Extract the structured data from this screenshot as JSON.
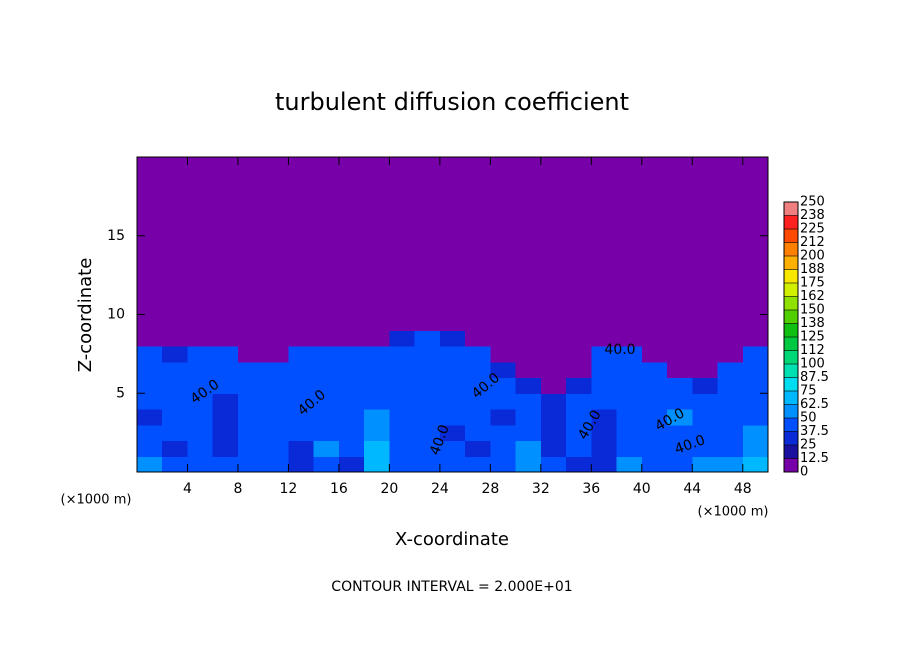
{
  "chart_data": {
    "type": "contour",
    "title": "turbulent diffusion coefficient",
    "xlabel": "X-coordinate",
    "ylabel": "Z-coordinate",
    "x_unit_left": "(×1000 m)",
    "x_unit_right": "(×1000 m)",
    "footer": "CONTOUR INTERVAL = 2.000E+01",
    "contour_labels": [
      "40.0",
      "40.0",
      "40.0",
      "40.0",
      "40.0",
      "40.0",
      "40.0",
      "40.0"
    ],
    "xlim": [
      0,
      50
    ],
    "ylim": [
      0,
      20
    ],
    "xticks": [
      4,
      8,
      12,
      16,
      20,
      24,
      28,
      32,
      36,
      40,
      44,
      48
    ],
    "yticks": [
      5,
      10,
      15
    ],
    "colorbar_ticks": [
      0,
      {
        "value": 12.5,
        "label": "12.5"
      },
      25,
      {
        "value": 37.5,
        "label": "37.5"
      },
      50,
      {
        "value": 62.5,
        "label": "62.5"
      },
      75,
      {
        "value": 87.5,
        "label": "87.5"
      },
      100,
      {
        "value": 112.5,
        "label": "112"
      },
      125,
      {
        "value": 137.5,
        "label": "138"
      },
      150,
      {
        "value": 162.5,
        "label": "162"
      },
      175,
      {
        "value": 187.5,
        "label": "188"
      },
      200,
      {
        "value": 212.5,
        "label": "212"
      },
      225,
      {
        "value": 237.5,
        "label": "238"
      },
      250
    ],
    "colors": [
      "#7700a8",
      "#1a10a0",
      "#0a2ad8",
      "#0050ff",
      "#0090ff",
      "#00b8ff",
      "#00dcf0",
      "#00e0b0",
      "#00d878",
      "#00c840",
      "#10c010",
      "#50d000",
      "#90e000",
      "#d0f000",
      "#f8e800",
      "#ffb000",
      "#ff8000",
      "#ff4800",
      "#ff2020",
      "#f08080"
    ],
    "z": [
      [
        55,
        40,
        45,
        38,
        40,
        42,
        30,
        45,
        35,
        70,
        40,
        48,
        42,
        38,
        45,
        62,
        40,
        35,
        30,
        50,
        45,
        42,
        60,
        58,
        65
      ],
      [
        45,
        35,
        42,
        30,
        38,
        45,
        35,
        50,
        38,
        65,
        42,
        45,
        40,
        30,
        44,
        50,
        35,
        40,
        25,
        48,
        40,
        38,
        45,
        40,
        55
      ],
      [
        40,
        38,
        45,
        28,
        42,
        40,
        38,
        45,
        40,
        55,
        38,
        42,
        35,
        38,
        40,
        45,
        30,
        42,
        28,
        45,
        42,
        40,
        48,
        45,
        50
      ],
      [
        35,
        42,
        38,
        30,
        40,
        38,
        42,
        40,
        45,
        50,
        40,
        38,
        42,
        40,
        35,
        42,
        32,
        48,
        35,
        42,
        45,
        50,
        42,
        48,
        45
      ],
      [
        40,
        45,
        40,
        35,
        38,
        42,
        40,
        38,
        42,
        45,
        42,
        40,
        38,
        45,
        40,
        38,
        25,
        40,
        38,
        40,
        48,
        45,
        40,
        42,
        40
      ],
      [
        42,
        40,
        45,
        38,
        42,
        45,
        38,
        40,
        45,
        42,
        40,
        45,
        40,
        42,
        38,
        35,
        0,
        35,
        42,
        45,
        40,
        40,
        35,
        45,
        42
      ],
      [
        40,
        38,
        42,
        40,
        45,
        48,
        42,
        45,
        40,
        38,
        45,
        42,
        38,
        40,
        30,
        0,
        0,
        0,
        40,
        42,
        38,
        0,
        0,
        40,
        45
      ],
      [
        38,
        35,
        40,
        38,
        0,
        0,
        40,
        42,
        45,
        40,
        42,
        40,
        42,
        38,
        0,
        0,
        0,
        0,
        38,
        40,
        0,
        0,
        0,
        0,
        38
      ],
      [
        0,
        0,
        0,
        0,
        0,
        0,
        0,
        0,
        0,
        0,
        35,
        38,
        30,
        0,
        0,
        0,
        0,
        0,
        0,
        0,
        0,
        0,
        0,
        0,
        0
      ],
      [
        0,
        0,
        0,
        0,
        0,
        0,
        0,
        0,
        0,
        0,
        0,
        0,
        0,
        0,
        0,
        0,
        0,
        0,
        0,
        0,
        0,
        0,
        0,
        0,
        0
      ],
      [
        0,
        0,
        0,
        0,
        0,
        0,
        0,
        0,
        0,
        0,
        0,
        0,
        0,
        0,
        0,
        0,
        0,
        0,
        0,
        0,
        0,
        0,
        0,
        0,
        0
      ],
      [
        0,
        0,
        0,
        0,
        0,
        0,
        0,
        0,
        0,
        0,
        0,
        0,
        0,
        0,
        0,
        0,
        0,
        0,
        0,
        0,
        0,
        0,
        0,
        0,
        0
      ],
      [
        0,
        0,
        0,
        0,
        0,
        0,
        0,
        0,
        0,
        0,
        0,
        0,
        0,
        0,
        0,
        0,
        0,
        0,
        0,
        0,
        0,
        0,
        0,
        0,
        0
      ],
      [
        0,
        0,
        0,
        0,
        0,
        0,
        0,
        0,
        0,
        0,
        0,
        0,
        0,
        0,
        0,
        0,
        0,
        0,
        0,
        0,
        0,
        0,
        0,
        0,
        0
      ],
      [
        0,
        0,
        0,
        0,
        0,
        0,
        0,
        0,
        0,
        0,
        0,
        0,
        0,
        0,
        0,
        0,
        0,
        0,
        0,
        0,
        0,
        0,
        0,
        0,
        0
      ],
      [
        0,
        0,
        0,
        0,
        0,
        0,
        0,
        0,
        0,
        0,
        0,
        0,
        0,
        0,
        0,
        0,
        0,
        0,
        0,
        0,
        0,
        0,
        0,
        0,
        0
      ],
      [
        0,
        0,
        0,
        0,
        0,
        0,
        0,
        0,
        0,
        0,
        0,
        0,
        0,
        0,
        0,
        0,
        0,
        0,
        0,
        0,
        0,
        0,
        0,
        0,
        0
      ],
      [
        0,
        0,
        0,
        0,
        0,
        0,
        0,
        0,
        0,
        0,
        0,
        0,
        0,
        0,
        0,
        0,
        0,
        0,
        0,
        0,
        0,
        0,
        0,
        0,
        0
      ],
      [
        0,
        0,
        0,
        0,
        0,
        0,
        0,
        0,
        0,
        0,
        0,
        0,
        0,
        0,
        0,
        0,
        0,
        0,
        0,
        0,
        0,
        0,
        0,
        0,
        0
      ],
      [
        0,
        0,
        0,
        0,
        0,
        0,
        0,
        0,
        0,
        0,
        0,
        0,
        0,
        0,
        0,
        0,
        0,
        0,
        0,
        0,
        0,
        0,
        0,
        0,
        0
      ]
    ]
  }
}
